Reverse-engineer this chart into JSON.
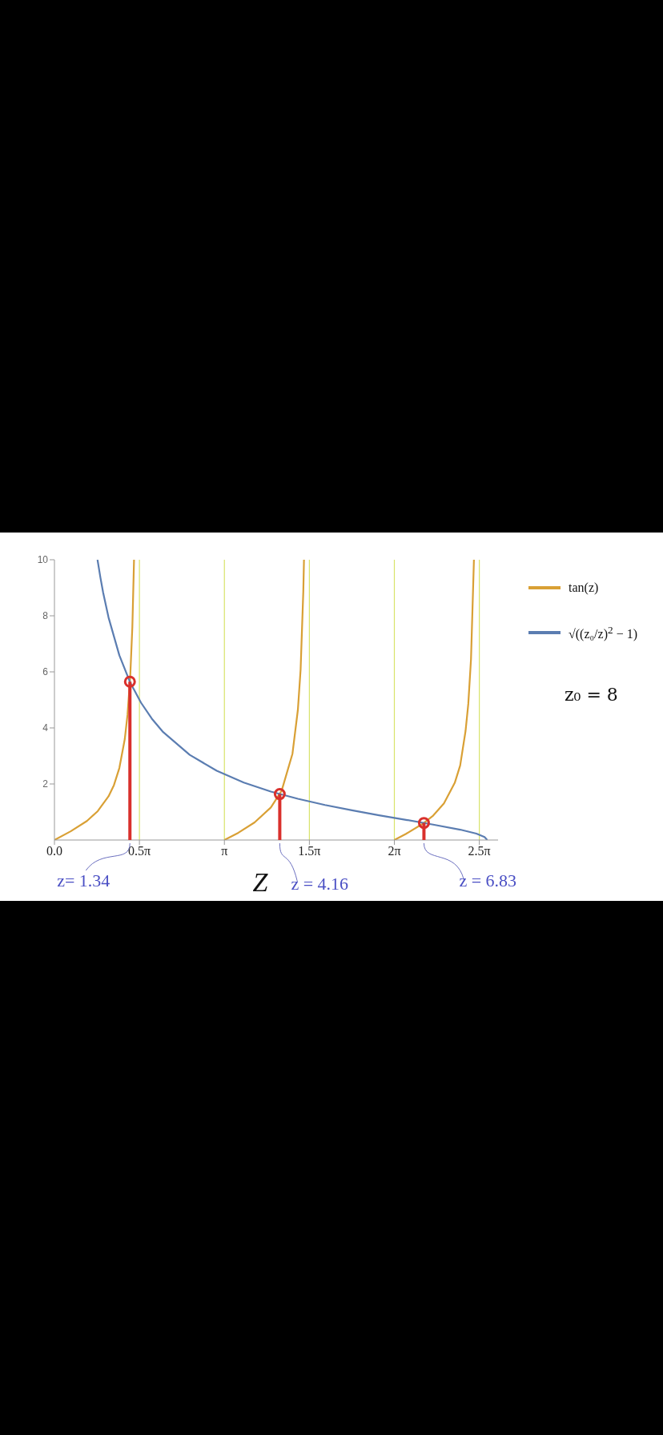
{
  "chart_data": {
    "type": "line",
    "xlabel": "Z",
    "xlim": [
      0,
      8.2
    ],
    "ylim": [
      0,
      10
    ],
    "xticks": [
      {
        "value": 0,
        "label": "0.0"
      },
      {
        "value": 1.5708,
        "label": "0.5π"
      },
      {
        "value": 3.1416,
        "label": "π"
      },
      {
        "value": 4.7124,
        "label": "1.5π"
      },
      {
        "value": 6.2832,
        "label": "2π"
      },
      {
        "value": 7.854,
        "label": "2.5π"
      }
    ],
    "yticks": [
      2,
      4,
      6,
      8,
      10
    ],
    "legend": "right",
    "series": [
      {
        "name": "tan(z)",
        "color": "#d9a035",
        "x": [
          0,
          0.3,
          0.6,
          0.8,
          1.0,
          1.1,
          1.2,
          1.3,
          1.35,
          1.4,
          1.44,
          1.4711,
          2.3,
          3.1416,
          3.4,
          3.7,
          4.0,
          4.2,
          4.4,
          4.5,
          4.55,
          4.6,
          4.6127,
          5.5,
          6.2832,
          6.5,
          6.8,
          7.0,
          7.2,
          7.4,
          7.5,
          7.6,
          7.65,
          7.7,
          7.7543
        ],
        "values": [
          0,
          0.31,
          0.68,
          1.03,
          1.56,
          1.96,
          2.57,
          3.6,
          4.46,
          5.8,
          7.6,
          10,
          null,
          0,
          0.26,
          0.63,
          1.16,
          1.76,
          3.08,
          4.65,
          6.07,
          8.86,
          10,
          null,
          0,
          0.22,
          0.57,
          0.87,
          1.31,
          2.04,
          2.66,
          3.9,
          4.86,
          6.45,
          10
        ]
      },
      {
        "name": "√((z₀/z)$^{2}$ − 1)",
        "color": "#5b7db1",
        "x": [
          0.796,
          0.85,
          0.9,
          1.0,
          1.2,
          1.4,
          1.6,
          1.8,
          2.0,
          2.5,
          3.0,
          3.5,
          4.0,
          4.5,
          5.0,
          5.5,
          6.0,
          6.5,
          7.0,
          7.5,
          7.8,
          7.95,
          8.0
        ],
        "values": [
          10,
          9.36,
          8.83,
          7.94,
          6.59,
          5.62,
          4.9,
          4.33,
          3.87,
          3.04,
          2.47,
          2.05,
          1.73,
          1.47,
          1.25,
          1.06,
          0.88,
          0.72,
          0.55,
          0.37,
          0.23,
          0.11,
          0
        ]
      },
      {
        "type": "lollipop",
        "color": "#d9302c",
        "marker": "circle",
        "x": [
          1.395,
          4.165,
          6.83
        ],
        "values": [
          5.65,
          1.64,
          0.61
        ]
      }
    ],
    "ref_lines": [
      {
        "axis": "x",
        "value": 1.5708,
        "color": "#d8e36a"
      },
      {
        "axis": "x",
        "value": 3.1416,
        "color": "#d8e36a"
      },
      {
        "axis": "x",
        "value": 4.7124,
        "color": "#d8e36a"
      },
      {
        "axis": "x",
        "value": 6.2832,
        "color": "#d8e36a"
      },
      {
        "axis": "x",
        "value": 7.854,
        "color": "#d8e36a"
      }
    ],
    "annotations": [
      "z= 1.34",
      "z = 4.16",
      "z = 6.83",
      "z₀ = 8"
    ]
  }
}
